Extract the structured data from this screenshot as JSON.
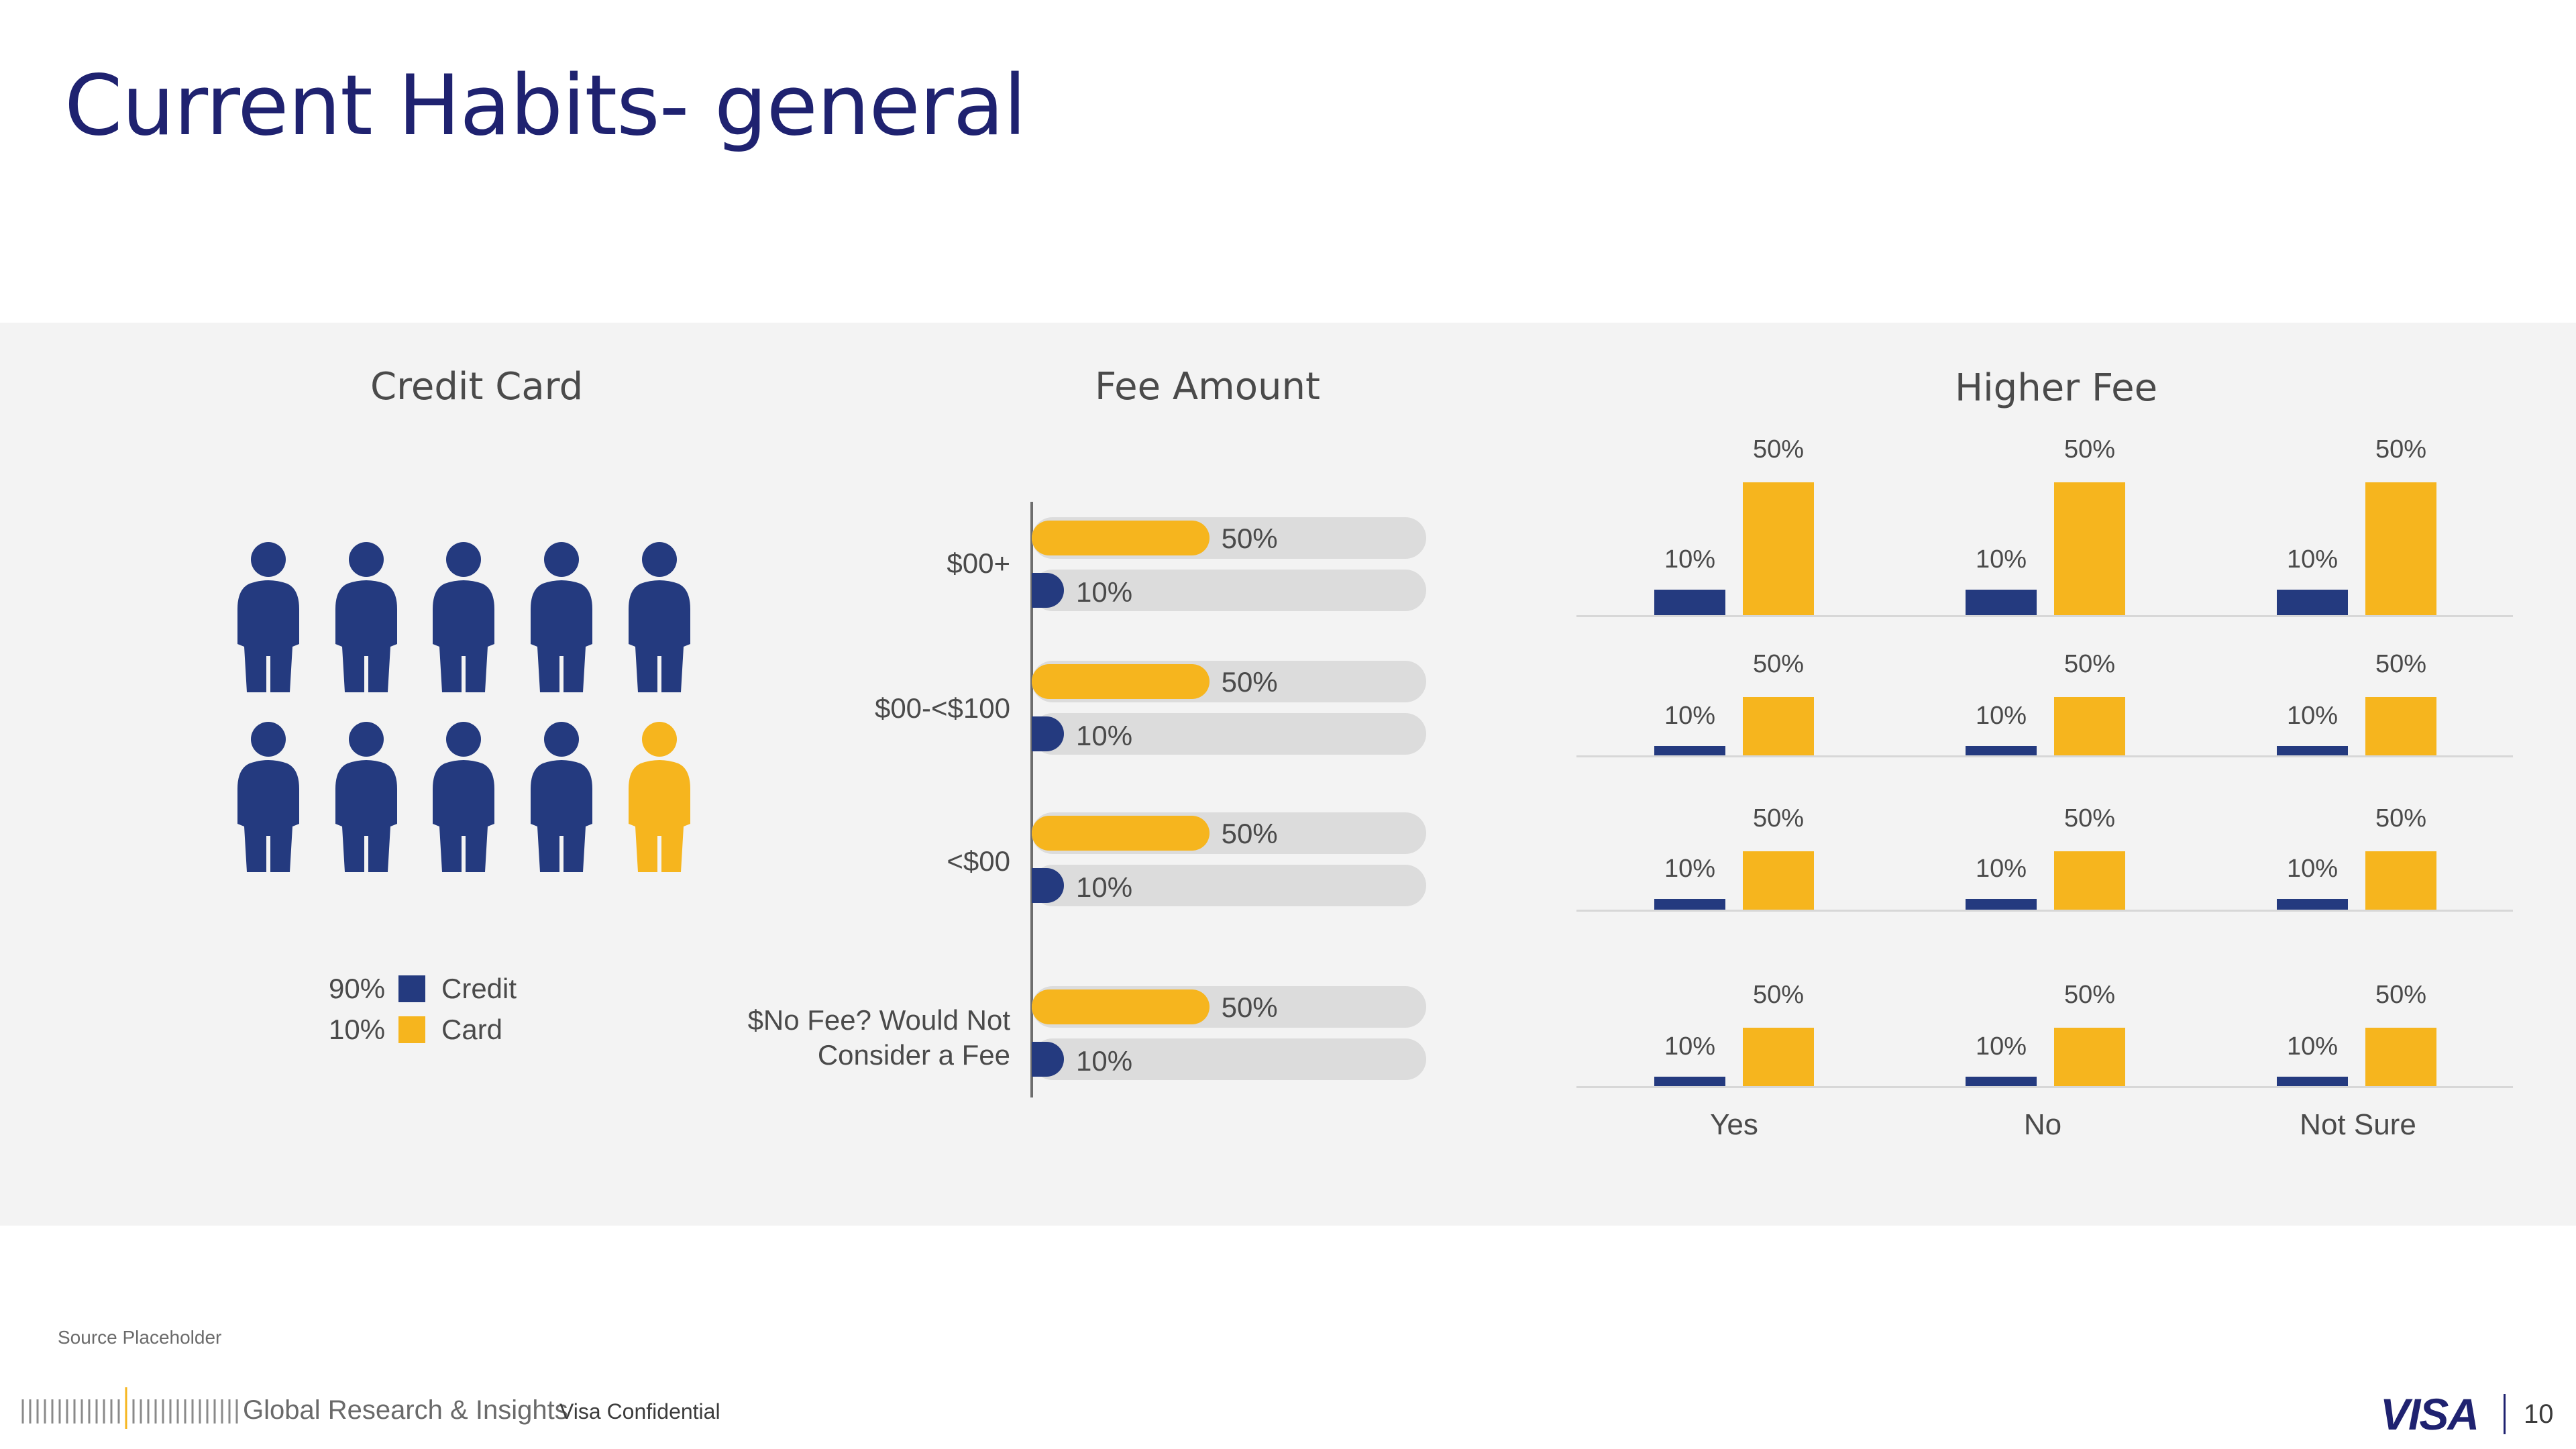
{
  "slide": {
    "title": "Current Habits- general",
    "source": "Source Placeholder",
    "footer_brand": "Global Research & Insights",
    "confidential": "Visa Confidential",
    "logo": "VISA",
    "page_number": "10"
  },
  "colors": {
    "navy": "#243a7f",
    "gold": "#f6b51e",
    "title": "#1f2270",
    "panel": "#f3f3f3",
    "track": "#dcdcdc"
  },
  "credit_card": {
    "title": "Credit Card",
    "people_total": 10,
    "people_gold": 1,
    "legend": [
      {
        "value": "90%",
        "label": "Credit",
        "color": "#243a7f"
      },
      {
        "value": "10%",
        "label": "Card",
        "color": "#f6b51e"
      }
    ]
  },
  "fee_amount": {
    "title": "Fee Amount",
    "rows": [
      {
        "label": "$00+",
        "gold": "50%",
        "navy": "10%"
      },
      {
        "label": "$00-<$100",
        "gold": "50%",
        "navy": "10%"
      },
      {
        "label": "<$00",
        "gold": "50%",
        "navy": "10%"
      },
      {
        "label": "$No Fee? Would Not Consider a Fee",
        "gold": "50%",
        "navy": "10%"
      }
    ]
  },
  "higher_fee": {
    "title": "Higher Fee",
    "categories": [
      "Yes",
      "No",
      "Not Sure"
    ]
  },
  "chart_data": [
    {
      "type": "pictogram",
      "title": "Credit Card",
      "categories": [
        "Credit",
        "Card"
      ],
      "values": [
        90,
        10
      ],
      "unit": "%"
    },
    {
      "type": "bar",
      "orientation": "horizontal",
      "title": "Fee Amount",
      "categories": [
        "$00+",
        "$00-<$100",
        "<$00",
        "$No Fee? Would Not Consider a Fee"
      ],
      "series": [
        {
          "values": [
            50,
            50,
            50,
            50
          ],
          "color": "#f6b51e"
        },
        {
          "values": [
            10,
            10,
            10,
            10
          ],
          "color": "#243a7f"
        }
      ],
      "xlim": [
        0,
        100
      ],
      "unit": "%"
    },
    {
      "type": "bar",
      "title": "Higher Fee",
      "categories": [
        "Yes",
        "No",
        "Not Sure"
      ],
      "panels": [
        {
          "series": [
            {
              "values": [
                10,
                10,
                10
              ],
              "color": "#243a7f"
            },
            {
              "values": [
                50,
                50,
                50
              ],
              "color": "#f6b51e"
            }
          ]
        },
        {
          "series": [
            {
              "values": [
                10,
                10,
                10
              ],
              "color": "#243a7f"
            },
            {
              "values": [
                50,
                50,
                50
              ],
              "color": "#f6b51e"
            }
          ]
        },
        {
          "series": [
            {
              "values": [
                10,
                10,
                10
              ],
              "color": "#243a7f"
            },
            {
              "values": [
                50,
                50,
                50
              ],
              "color": "#f6b51e"
            }
          ]
        },
        {
          "series": [
            {
              "values": [
                10,
                10,
                10
              ],
              "color": "#243a7f"
            },
            {
              "values": [
                50,
                50,
                50
              ],
              "color": "#f6b51e"
            }
          ]
        }
      ],
      "unit": "%"
    }
  ]
}
